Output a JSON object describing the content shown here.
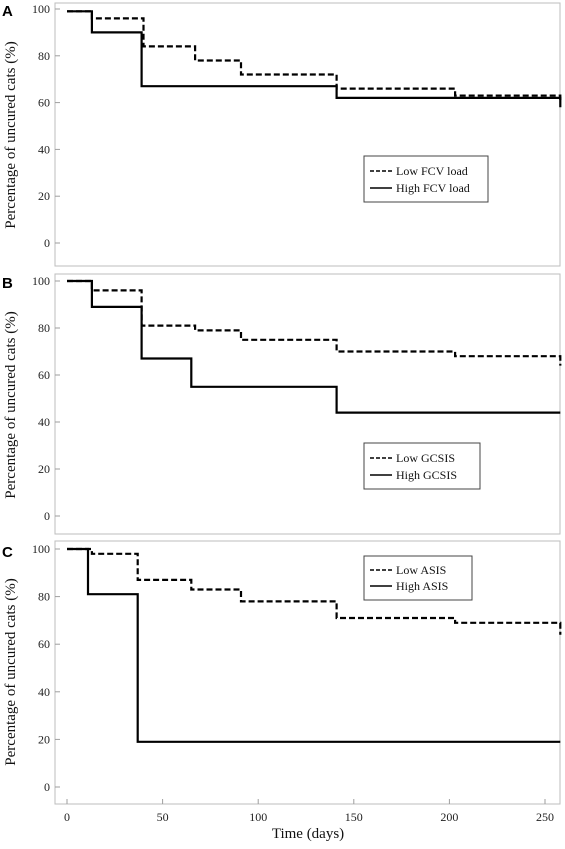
{
  "chart_data": [
    {
      "panel": "A",
      "type": "line",
      "step": true,
      "ylabel": "Percentage of uncured cats (%)",
      "xlim": [
        0,
        260
      ],
      "ylim": [
        0,
        100
      ],
      "yticks": [
        0,
        20,
        40,
        60,
        80,
        100
      ],
      "legend_position": "middle-right",
      "series": [
        {
          "name": "Low FCV load",
          "style": "dashed",
          "x": [
            0,
            13,
            13,
            40,
            40,
            67,
            67,
            91,
            91,
            141,
            141,
            203,
            203,
            258,
            258
          ],
          "y": [
            99,
            99,
            96,
            96,
            84,
            84,
            78,
            78,
            72,
            72,
            66,
            66,
            63,
            63,
            60
          ]
        },
        {
          "name": "High FCV load",
          "style": "solid",
          "x": [
            0,
            13,
            13,
            39,
            39,
            141,
            141,
            258,
            258
          ],
          "y": [
            99,
            99,
            90,
            90,
            67,
            67,
            62,
            62,
            58
          ]
        }
      ]
    },
    {
      "panel": "B",
      "type": "line",
      "step": true,
      "ylabel": "Percentage of uncured cats (%)",
      "xlim": [
        0,
        260
      ],
      "ylim": [
        0,
        100
      ],
      "yticks": [
        0,
        20,
        40,
        60,
        80,
        100
      ],
      "legend_position": "bottom-right",
      "series": [
        {
          "name": "Low GCSIS",
          "style": "dashed",
          "x": [
            0,
            13,
            13,
            39,
            39,
            67,
            67,
            91,
            91,
            141,
            141,
            203,
            203,
            258,
            258
          ],
          "y": [
            100,
            100,
            96,
            96,
            81,
            81,
            79,
            79,
            75,
            75,
            70,
            70,
            68,
            68,
            64
          ]
        },
        {
          "name": "High GCSIS",
          "style": "solid",
          "x": [
            0,
            13,
            13,
            39,
            39,
            65,
            65,
            141,
            141,
            258
          ],
          "y": [
            100,
            100,
            89,
            89,
            67,
            67,
            55,
            55,
            44,
            44
          ]
        }
      ]
    },
    {
      "panel": "C",
      "type": "line",
      "step": true,
      "ylabel": "Percentage of uncured cats (%)",
      "xlabel": "Time (days)",
      "xlim": [
        0,
        260
      ],
      "ylim": [
        0,
        100
      ],
      "yticks": [
        0,
        20,
        40,
        60,
        80,
        100
      ],
      "xticks": [
        0,
        50,
        100,
        150,
        200,
        250
      ],
      "legend_position": "top-right",
      "series": [
        {
          "name": "Low ASIS",
          "style": "dashed",
          "x": [
            0,
            13,
            13,
            37,
            37,
            65,
            65,
            91,
            91,
            141,
            141,
            203,
            203,
            258,
            258
          ],
          "y": [
            100,
            100,
            98,
            98,
            87,
            87,
            83,
            83,
            78,
            78,
            71,
            71,
            69,
            69,
            64
          ]
        },
        {
          "name": "High ASIS",
          "style": "solid",
          "x": [
            0,
            11,
            11,
            37,
            37,
            258
          ],
          "y": [
            100,
            100,
            81,
            81,
            19,
            19
          ]
        }
      ]
    }
  ]
}
